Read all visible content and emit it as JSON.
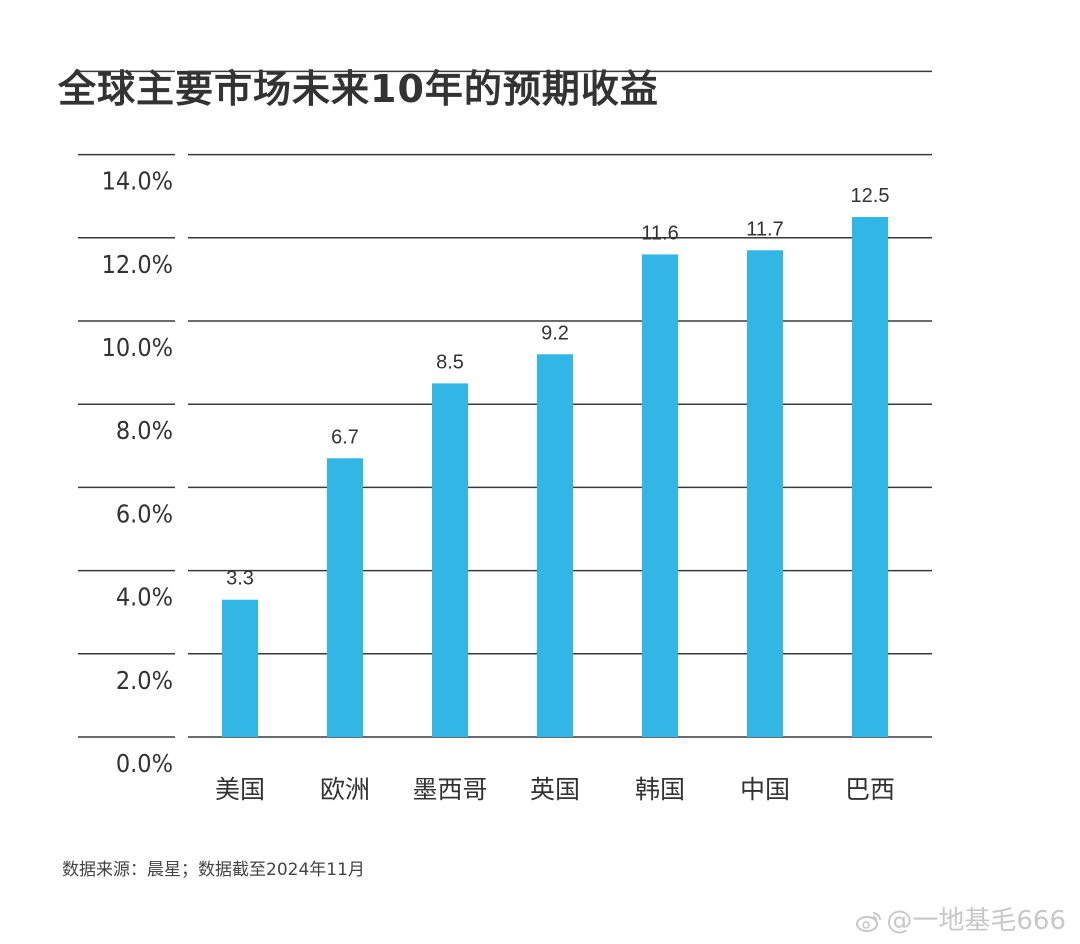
{
  "title": "全球主要市场未来10年的预期收益",
  "source": "数据来源：晨星；数据截至2024年11月",
  "watermark": {
    "text": "@一地基毛666",
    "icon": "weibo-icon"
  },
  "colors": {
    "bar": "#31b6e6",
    "grid": "#3a3a3a",
    "text": "#333333"
  },
  "chart_data": {
    "type": "bar",
    "title": "全球主要市场未来10年的预期收益",
    "xlabel": "",
    "ylabel": "",
    "categories": [
      "美国",
      "欧洲",
      "墨西哥",
      "英国",
      "韩国",
      "中国",
      "巴西"
    ],
    "values": [
      3.3,
      6.7,
      8.5,
      9.2,
      11.6,
      11.7,
      12.5
    ],
    "data_labels": [
      "3.3",
      "6.7",
      "8.5",
      "9.2",
      "11.6",
      "11.7",
      "12.5"
    ],
    "y_ticks": [
      0,
      2,
      4,
      6,
      8,
      10,
      12,
      14
    ],
    "y_tick_labels": [
      "0.0%",
      "2.0%",
      "4.0%",
      "6.0%",
      "8.0%",
      "10.0%",
      "12.0%",
      "14.0%"
    ],
    "ylim": [
      0,
      14
    ],
    "grid": true,
    "legend": "none"
  }
}
